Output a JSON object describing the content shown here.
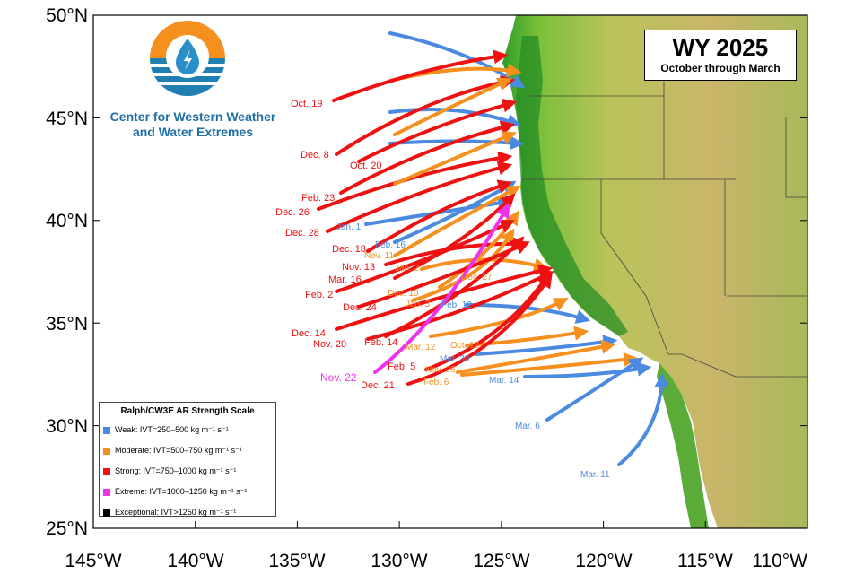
{
  "title": "WY 2025",
  "subtitle": "October through March",
  "logo": {
    "icon": "water-drop-sun-logo",
    "line1": "Center for Western Weather",
    "line2": "and Water Extremes"
  },
  "axes": {
    "lat_ticks": [
      "50°N",
      "45°N",
      "40°N",
      "35°N",
      "30°N",
      "25°N"
    ],
    "lon_ticks": [
      "145°W",
      "140°W",
      "135°W",
      "130°W",
      "125°W",
      "120°W",
      "115°W",
      "110°W"
    ],
    "lat_range": [
      25,
      50
    ],
    "lon_range": [
      -145,
      -110
    ]
  },
  "legend": {
    "title": "Ralph/CW3E AR Strength Scale",
    "items": [
      {
        "label": "Weak: IVT=250–500 kg m⁻¹ s⁻¹",
        "color": "#4a8ae0"
      },
      {
        "label": "Moderate: IVT=500–750 kg m⁻¹ s⁻¹",
        "color": "#f5901e"
      },
      {
        "label": "Strong: IVT=750–1000 kg m⁻¹ s⁻¹",
        "color": "#ee1111"
      },
      {
        "label": "Extreme: IVT=1000–1250 kg m⁻¹ s⁻¹",
        "color": "#ee33ee"
      },
      {
        "label": "Exceptional: IVT>1250 kg m⁻¹ s⁻¹",
        "color": "#000000"
      }
    ]
  },
  "colors": {
    "weak": "#4a8ae0",
    "moderate": "#f5901e",
    "strong": "#ee1111",
    "extreme": "#ee33ee",
    "ocean": "#ffffff",
    "land_low": "#2e9e2a",
    "land_high": "#c9b56a"
  },
  "ar_labels": [
    {
      "text": "Oct. 19",
      "cat": "strong"
    },
    {
      "text": "Dec. 8",
      "cat": "strong"
    },
    {
      "text": "Oct. 20",
      "cat": "strong"
    },
    {
      "text": "Feb. 23",
      "cat": "strong"
    },
    {
      "text": "Dec. 26",
      "cat": "strong"
    },
    {
      "text": "Dec. 28",
      "cat": "strong"
    },
    {
      "text": "Jan. 1",
      "cat": "weak"
    },
    {
      "text": "Feb. 16",
      "cat": "weak"
    },
    {
      "text": "Nov. 11",
      "cat": "moderate"
    },
    {
      "text": "Dec. 18",
      "cat": "strong"
    },
    {
      "text": "Nov. 13",
      "cat": "strong"
    },
    {
      "text": "Mar. 16",
      "cat": "strong"
    },
    {
      "text": "Jan. 27",
      "cat": "moderate"
    },
    {
      "text": "Dec. 27",
      "cat": "moderate"
    },
    {
      "text": "Feb. 2",
      "cat": "strong"
    },
    {
      "text": "Dec. 10",
      "cat": "moderate"
    },
    {
      "text": "Jan. 3",
      "cat": "moderate"
    },
    {
      "text": "Feb. 12",
      "cat": "weak"
    },
    {
      "text": "Dec. 24",
      "cat": "strong"
    },
    {
      "text": "Dec. 14",
      "cat": "strong"
    },
    {
      "text": "Nov. 20",
      "cat": "strong"
    },
    {
      "text": "Feb. 14",
      "cat": "strong"
    },
    {
      "text": "Mar. 12",
      "cat": "moderate"
    },
    {
      "text": "Oct. 12",
      "cat": "moderate"
    },
    {
      "text": "Mar. 30",
      "cat": "weak"
    },
    {
      "text": "Nov. 22",
      "cat": "extreme"
    },
    {
      "text": "Feb. 5",
      "cat": "strong"
    },
    {
      "text": "Nov. 26",
      "cat": "moderate"
    },
    {
      "text": "Dec. 21",
      "cat": "strong"
    },
    {
      "text": "Feb. 6",
      "cat": "moderate"
    },
    {
      "text": "Mar. 14",
      "cat": "weak"
    },
    {
      "text": "Mar. 6",
      "cat": "weak"
    },
    {
      "text": "Mar. 11",
      "cat": "weak"
    }
  ]
}
